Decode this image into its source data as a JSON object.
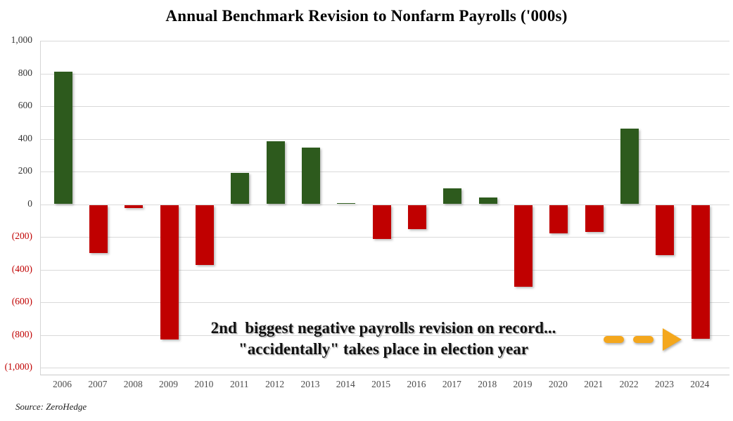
{
  "page": {
    "background": "#ffffff"
  },
  "chart_data": {
    "type": "bar",
    "title": "Annual Benchmark Revision to Nonfarm Payrolls ('000s)",
    "categories": [
      "2006",
      "2007",
      "2008",
      "2009",
      "2010",
      "2011",
      "2012",
      "2013",
      "2014",
      "2015",
      "2016",
      "2017",
      "2018",
      "2019",
      "2020",
      "2021",
      "2022",
      "2023",
      "2024"
    ],
    "values": [
      810,
      -293,
      -21,
      -824,
      -366,
      192,
      386,
      345,
      7,
      -208,
      -150,
      95,
      43,
      -501,
      -173,
      -166,
      462,
      -306,
      -818
    ],
    "unit": "thousands of payrolls",
    "xlabel": "",
    "ylabel": "",
    "ylim": [
      -1000,
      1000
    ],
    "y_tick_interval": 200,
    "y_tick_values": [
      1000,
      800,
      600,
      400,
      200,
      0,
      -200,
      -400,
      -600,
      -800,
      -1000
    ],
    "y_tick_labels": [
      "1,000",
      "800",
      "600",
      "400",
      "200",
      "0",
      "(200)",
      "(400)",
      "(600)",
      "(800)",
      "(1,000)"
    ],
    "grid": true,
    "legend": false,
    "colors": {
      "positive": "#2d5a1d",
      "negative": "#c00000",
      "gridline": "#d9d9d9",
      "arrow": "#f4a71d"
    },
    "annotation": {
      "line1": "2nd  biggest negative payrolls revision on record...",
      "line2": "\"accidentally\" takes place in election year"
    },
    "arrow": {
      "style": "dashed",
      "direction": "right",
      "points_to": "2024"
    },
    "source": "Source: ZeroHedge"
  }
}
